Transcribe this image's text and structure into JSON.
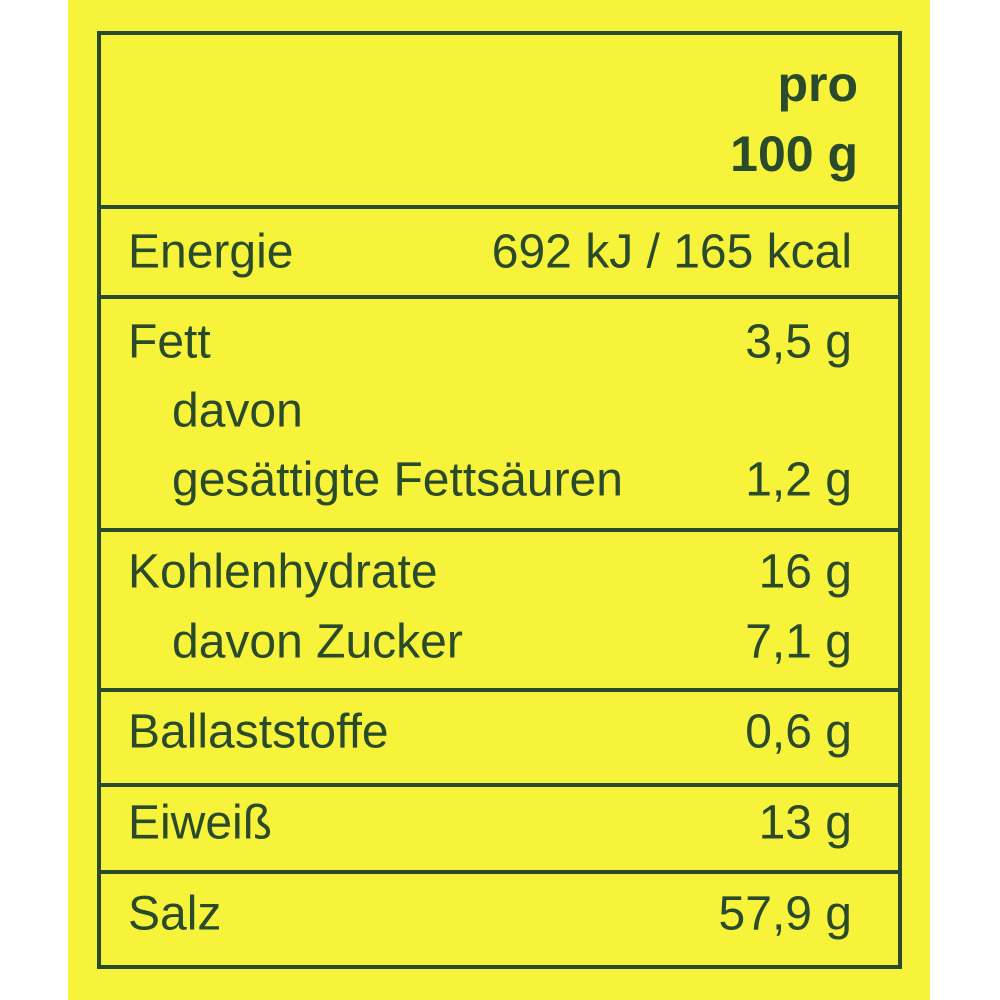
{
  "header": [
    "pro",
    "100 g"
  ],
  "sections": [
    [
      {
        "label": "Energie",
        "value": "692 kJ / 165 kcal"
      }
    ],
    [
      {
        "label": "Fett",
        "value": "3,5 g"
      },
      {
        "label": "davon"
      },
      {
        "label": "gesättigte Fettsäuren",
        "value": "1,2 g"
      }
    ],
    [
      {
        "label": "Kohlenhydrate",
        "value": "16 g"
      },
      {
        "label": "davon Zucker",
        "value": "7,1 g"
      }
    ],
    [
      {
        "label": "Ballaststoffe",
        "value": "0,6 g"
      }
    ],
    [
      {
        "label": "Eiweiß",
        "value": "13 g"
      }
    ],
    [
      {
        "label": "Salz",
        "value": "57,9 g"
      }
    ]
  ]
}
